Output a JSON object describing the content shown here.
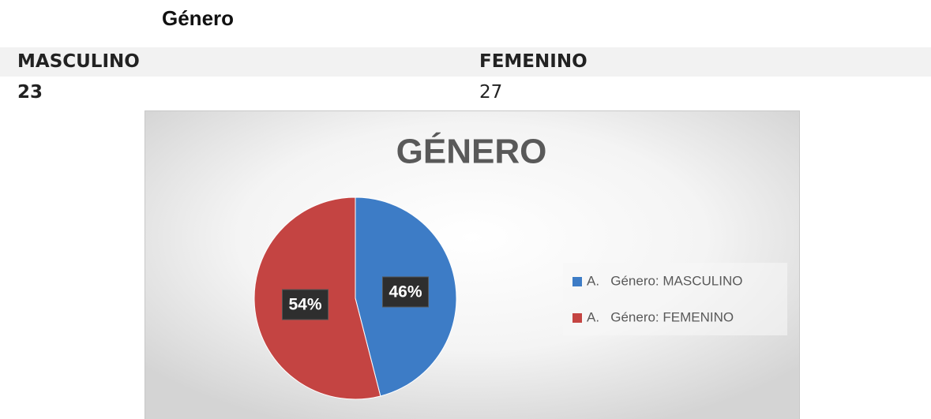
{
  "header": {
    "title": "Género"
  },
  "table": {
    "rows": [
      [
        "MASCULINO",
        "FEMENINO"
      ],
      [
        "23",
        "27"
      ]
    ]
  },
  "chart_data": {
    "type": "pie",
    "title": "GÉNERO",
    "categories": [
      "A.   Género: MASCULINO",
      "A.   Género: FEMENINO"
    ],
    "values": [
      46,
      54
    ],
    "value_labels": [
      "46%",
      "54%"
    ],
    "colors": [
      "#3d7cc6",
      "#c44442"
    ],
    "legend": "right"
  }
}
